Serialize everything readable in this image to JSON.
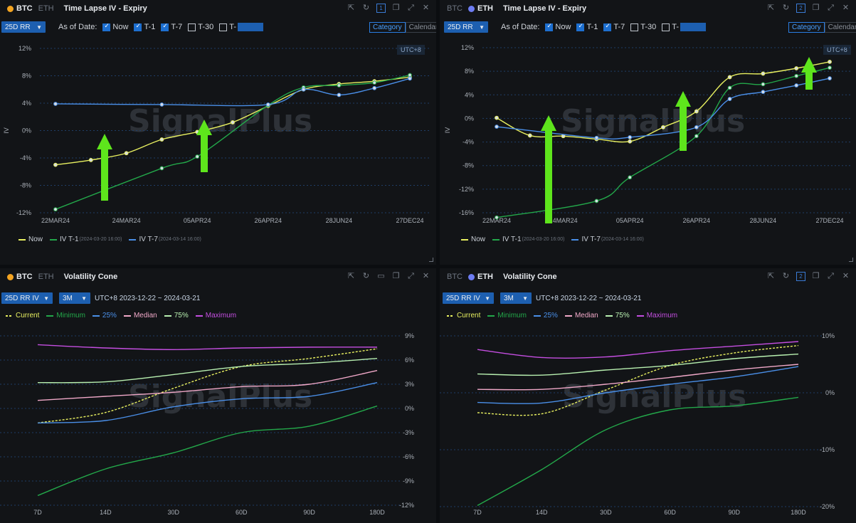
{
  "panels": [
    {
      "id": "p1",
      "coins": [
        "BTC",
        "ETH"
      ],
      "active_coin": "BTC",
      "title": "Time Lapse IV - Expiry",
      "selector": "25D RR",
      "as_of_label": "As of Date:",
      "checks": [
        {
          "label": "Now",
          "on": true
        },
        {
          "label": "T-1",
          "on": true
        },
        {
          "label": "T-7",
          "on": true
        },
        {
          "label": "T-30",
          "on": false
        },
        {
          "label": "T-",
          "on": false
        }
      ],
      "segment": [
        "Category",
        "Calendar"
      ],
      "segment_active": "Category",
      "utc": "UTC+8",
      "badge": "1",
      "watermark": "SignalPlus",
      "legend": [
        {
          "name": "Now",
          "sub": "",
          "color": "#e8f060"
        },
        {
          "name": "IV T-1",
          "sub": "(2024-03-20 16:00)",
          "color": "#23a84a"
        },
        {
          "name": "IV T-7",
          "sub": "(2024-03-14 16:00)",
          "color": "#4a8fe8"
        }
      ]
    },
    {
      "id": "p2",
      "coins": [
        "BTC",
        "ETH"
      ],
      "active_coin": "ETH",
      "title": "Time Lapse IV - Expiry",
      "selector": "25D RR",
      "as_of_label": "As of Date:",
      "checks": [
        {
          "label": "Now",
          "on": true
        },
        {
          "label": "T-1",
          "on": true
        },
        {
          "label": "T-7",
          "on": true
        },
        {
          "label": "T-30",
          "on": false
        },
        {
          "label": "T-",
          "on": false
        }
      ],
      "segment": [
        "Category",
        "Calendar"
      ],
      "segment_active": "Category",
      "utc": "UTC+8",
      "badge": "2",
      "watermark": "SignalPlus",
      "legend": [
        {
          "name": "Now",
          "sub": "",
          "color": "#e8f060"
        },
        {
          "name": "IV T-1",
          "sub": "(2024-03-20 16:00)",
          "color": "#23a84a"
        },
        {
          "name": "IV T-7",
          "sub": "(2024-03-14 16:00)",
          "color": "#4a8fe8"
        }
      ]
    },
    {
      "id": "p3",
      "coins": [
        "BTC",
        "ETH"
      ],
      "active_coin": "BTC",
      "title": "Volatility Cone",
      "selector": "25D RR IV",
      "selector2": "3M",
      "daterange": "UTC+8 2023-12-22 ~ 2024-03-21",
      "watermark": "SignalPlus",
      "legend": [
        {
          "name": "Current",
          "color": "#e8f060",
          "dashed": true
        },
        {
          "name": "Minimum",
          "color": "#23a84a"
        },
        {
          "name": "25%",
          "color": "#4a8fe8"
        },
        {
          "name": "Median",
          "color": "#f0a8c8"
        },
        {
          "name": "75%",
          "color": "#b8f0b0"
        },
        {
          "name": "Maximum",
          "color": "#c44ee0"
        }
      ]
    },
    {
      "id": "p4",
      "coins": [
        "BTC",
        "ETH"
      ],
      "active_coin": "ETH",
      "title": "Volatility Cone",
      "selector": "25D RR IV",
      "selector2": "3M",
      "daterange": "UTC+8 2023-12-22 ~ 2024-03-21",
      "badge": "2",
      "watermark": "SignalPlus",
      "legend": [
        {
          "name": "Current",
          "color": "#e8f060",
          "dashed": true
        },
        {
          "name": "Minimum",
          "color": "#23a84a"
        },
        {
          "name": "25%",
          "color": "#4a8fe8"
        },
        {
          "name": "Median",
          "color": "#f0a8c8"
        },
        {
          "name": "75%",
          "color": "#b8f0b0"
        },
        {
          "name": "Maximum",
          "color": "#c44ee0"
        }
      ]
    }
  ],
  "chart_data": [
    {
      "type": "line",
      "title": "Time Lapse IV - Expiry",
      "ylabel": "IV",
      "categories": [
        "22MAR24",
        "24MAR24",
        "05APR24",
        "26APR24",
        "28JUN24",
        "27DEC24"
      ],
      "yticks": [
        "12%",
        "8%",
        "4%",
        "0%",
        "-4%",
        "-8%",
        "-12%"
      ],
      "ylim": [
        -12,
        12
      ],
      "x": [
        0,
        0.5,
        1,
        1.5,
        2,
        2.5,
        3,
        3.5,
        4,
        4.5,
        5
      ],
      "series": [
        {
          "name": "Now",
          "color": "#e8f060",
          "values": [
            -5.0,
            -4.3,
            -3.3,
            -1.3,
            -0.2,
            1.2,
            3.6,
            6.0,
            6.8,
            7.2,
            7.8
          ]
        },
        {
          "name": "IV T-1",
          "color": "#23a84a",
          "values": [
            -11.5,
            null,
            null,
            -5.5,
            -3.8,
            null,
            3.7,
            6.3,
            6.6,
            7.0,
            8.1
          ]
        },
        {
          "name": "IV T-7",
          "color": "#4a8fe8",
          "values": [
            3.9,
            null,
            null,
            3.8,
            null,
            null,
            3.8,
            6.0,
            5.2,
            6.2,
            7.6
          ]
        }
      ]
    },
    {
      "type": "line",
      "title": "Time Lapse IV - Expiry",
      "ylabel": "IV",
      "categories": [
        "22MAR24",
        "24MAR24",
        "05APR24",
        "26APR24",
        "28JUN24",
        "27DEC24"
      ],
      "yticks": [
        "12%",
        "8%",
        "4%",
        "0%",
        "-4%",
        "-8%",
        "-12%",
        "-16%"
      ],
      "ylim": [
        -16,
        12
      ],
      "x": [
        0,
        0.5,
        1,
        1.5,
        2,
        2.5,
        3,
        3.5,
        4,
        4.5,
        5
      ],
      "series": [
        {
          "name": "Now",
          "color": "#e8f060",
          "values": [
            0.1,
            -2.9,
            -3.0,
            -3.5,
            -3.9,
            -1.5,
            1.2,
            7.0,
            7.6,
            8.5,
            9.6
          ]
        },
        {
          "name": "IV T-1",
          "color": "#23a84a",
          "values": [
            -16.8,
            null,
            null,
            -14.0,
            -10.0,
            null,
            -3.0,
            5.2,
            5.8,
            7.2,
            8.6
          ]
        },
        {
          "name": "IV T-7",
          "color": "#4a8fe8",
          "values": [
            -1.4,
            null,
            null,
            -3.3,
            -3.2,
            null,
            -1.5,
            3.3,
            4.5,
            5.6,
            6.8
          ]
        }
      ]
    },
    {
      "type": "line",
      "title": "Volatility Cone",
      "categories": [
        "7D",
        "14D",
        "30D",
        "60D",
        "90D",
        "180D"
      ],
      "yticks": [
        "9%",
        "6%",
        "3%",
        "0%",
        "-3%",
        "-6%",
        "-9%",
        "-12%"
      ],
      "ylim": [
        -12,
        9
      ],
      "series": [
        {
          "name": "Current",
          "color": "#e8f060",
          "values": [
            -1.8,
            -0.5,
            2.5,
            5.2,
            6.2,
            7.4
          ]
        },
        {
          "name": "Minimum",
          "color": "#23a84a",
          "values": [
            -10.8,
            -7.5,
            -5.5,
            -3.0,
            -2.2,
            0.3
          ]
        },
        {
          "name": "25%",
          "color": "#4a8fe8",
          "values": [
            -1.8,
            -1.5,
            0.2,
            1.2,
            1.5,
            3.2
          ]
        },
        {
          "name": "Median",
          "color": "#f0a8c8",
          "values": [
            1.0,
            1.5,
            2.0,
            2.7,
            3.0,
            4.7
          ]
        },
        {
          "name": "75%",
          "color": "#b8f0b0",
          "values": [
            3.2,
            3.3,
            4.2,
            5.2,
            5.6,
            6.2
          ]
        },
        {
          "name": "Maximum",
          "color": "#c44ee0",
          "values": [
            7.9,
            7.5,
            7.3,
            7.5,
            7.6,
            7.6
          ]
        }
      ]
    },
    {
      "type": "line",
      "title": "Volatility Cone",
      "categories": [
        "7D",
        "14D",
        "30D",
        "60D",
        "90D",
        "180D"
      ],
      "yticks": [
        "10%",
        "0%",
        "-10%",
        "-20%"
      ],
      "ylim": [
        -20,
        10
      ],
      "series": [
        {
          "name": "Current",
          "color": "#e8f060",
          "values": [
            -3.5,
            -3.7,
            0.5,
            4.8,
            7.0,
            8.3
          ]
        },
        {
          "name": "Minimum",
          "color": "#23a84a",
          "values": [
            -19.8,
            -13.5,
            -6.5,
            -3.0,
            -2.3,
            -0.8
          ]
        },
        {
          "name": "25%",
          "color": "#4a8fe8",
          "values": [
            -1.7,
            -1.8,
            0.0,
            1.5,
            2.8,
            4.6
          ]
        },
        {
          "name": "Median",
          "color": "#f0a8c8",
          "values": [
            0.6,
            0.6,
            1.5,
            2.7,
            4.0,
            5.0
          ]
        },
        {
          "name": "75%",
          "color": "#b8f0b0",
          "values": [
            3.3,
            3.1,
            4.0,
            4.8,
            6.0,
            6.8
          ]
        },
        {
          "name": "Maximum",
          "color": "#c44ee0",
          "values": [
            7.6,
            6.2,
            6.3,
            7.4,
            8.2,
            9.0
          ]
        }
      ]
    }
  ]
}
